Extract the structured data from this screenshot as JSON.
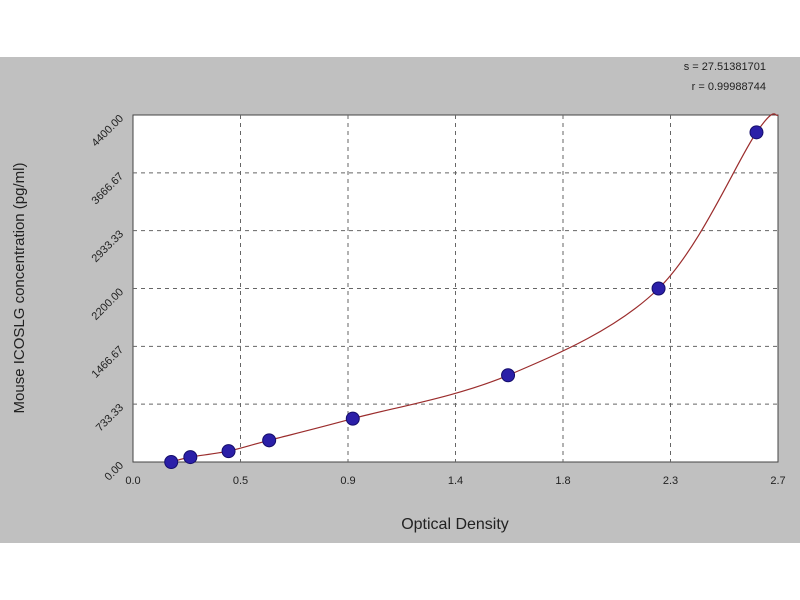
{
  "chart_data": {
    "type": "scatter",
    "xlabel": "Optical Density",
    "ylabel": "Mouse ICOSLG concentration (pg/ml)",
    "xlim": [
      0.0,
      2.7
    ],
    "ylim": [
      0,
      4400
    ],
    "x_tick_labels": [
      "0.0",
      "0.5",
      "0.9",
      "1.4",
      "1.8",
      "2.3",
      "2.7"
    ],
    "y_tick_labels": [
      "0.00",
      "733.33",
      "1466.67",
      "2200.00",
      "2933.33",
      "3666.67",
      "4400.00"
    ],
    "grid": true,
    "series": [
      {
        "points": [
          {
            "x": 0.16,
            "y": 0
          },
          {
            "x": 0.24,
            "y": 62
          },
          {
            "x": 0.4,
            "y": 138
          },
          {
            "x": 0.57,
            "y": 275
          },
          {
            "x": 0.92,
            "y": 550
          },
          {
            "x": 1.57,
            "y": 1100
          },
          {
            "x": 2.2,
            "y": 2200
          },
          {
            "x": 2.61,
            "y": 4180
          }
        ],
        "color": "#2b1fa8"
      }
    ],
    "fit": {
      "color": "#9b2d2d"
    },
    "stats": {
      "s": "s = 27.51381701",
      "r": "r = 0.99988744"
    }
  }
}
